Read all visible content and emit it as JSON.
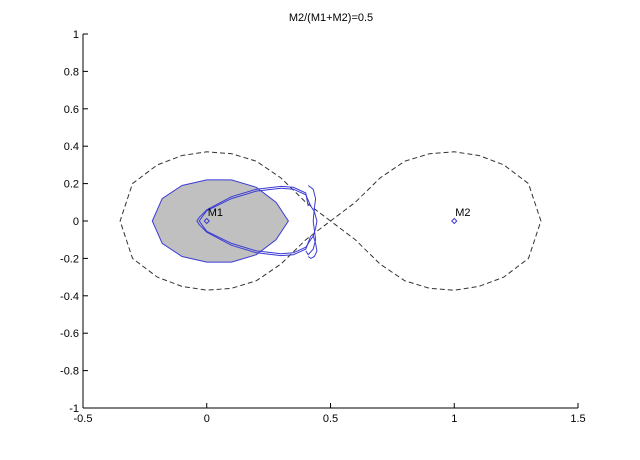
{
  "chart_data": {
    "type": "line",
    "title": "M2/(M1+M2)=0.5",
    "xlabel": "",
    "ylabel": "",
    "xlim": [
      -0.5,
      1.5
    ],
    "ylim": [
      -1,
      1
    ],
    "grid": false,
    "x_ticks": [
      -0.5,
      0,
      0.5,
      1,
      1.5
    ],
    "x_tick_labels": [
      "-0.5",
      "0",
      "0.5",
      "1",
      "1.5"
    ],
    "y_ticks": [
      -1,
      -0.8,
      -0.6,
      -0.4,
      -0.2,
      0,
      0.2,
      0.4,
      0.6,
      0.8,
      1
    ],
    "y_tick_labels": [
      "-1",
      "-0.8",
      "-0.6",
      "-0.4",
      "-0.2",
      "0",
      "0.2",
      "0.4",
      "0.6",
      "0.8",
      "1"
    ],
    "colors": {
      "axes": "#000000",
      "zero_velocity_curve": "#333333",
      "orbit": "#3b3bd6",
      "filled_region": "#c0c0c0",
      "mass_marker": "#3b3bd6"
    },
    "masses": [
      {
        "label": "M1",
        "x": 0,
        "y": 0
      },
      {
        "label": "M2",
        "x": 1,
        "y": 0
      }
    ],
    "filled_region": {
      "x": [
        -0.22,
        -0.18,
        -0.1,
        0,
        0.1,
        0.2,
        0.28,
        0.33,
        0.28,
        0.2,
        0.1,
        0,
        -0.1,
        -0.18,
        -0.22
      ],
      "y": [
        0,
        0.12,
        0.19,
        0.22,
        0.22,
        0.18,
        0.1,
        0,
        -0.1,
        -0.18,
        -0.22,
        -0.22,
        -0.19,
        -0.12,
        0
      ]
    },
    "series": [
      {
        "style": "dashed",
        "x": [
          0.5,
          0.4,
          0.3,
          0.2,
          0.1,
          0,
          -0.1,
          -0.2,
          -0.3,
          -0.35,
          -0.3,
          -0.2,
          -0.1,
          0,
          0.1,
          0.2,
          0.3,
          0.4,
          0.5,
          0.6,
          0.7,
          0.8,
          0.9,
          1,
          1.1,
          1.2,
          1.3,
          1.35,
          1.3,
          1.2,
          1.1,
          1,
          0.9,
          0.8,
          0.7,
          0.6,
          0.5
        ],
        "y": [
          0,
          0.1,
          0.23,
          0.32,
          0.36,
          0.37,
          0.35,
          0.3,
          0.2,
          0,
          -0.2,
          -0.3,
          -0.35,
          -0.37,
          -0.36,
          -0.32,
          -0.23,
          -0.1,
          0,
          0.1,
          0.23,
          0.32,
          0.36,
          0.37,
          0.35,
          0.3,
          0.2,
          0,
          -0.2,
          -0.3,
          -0.35,
          -0.37,
          -0.36,
          -0.32,
          -0.23,
          -0.1,
          0
        ]
      },
      {
        "style": "solid",
        "x": [
          0.41,
          0.4,
          0.35,
          0.3,
          0.2,
          0.1,
          0,
          -0.03,
          -0.04,
          -0.03,
          0,
          0.1,
          0.2,
          0.3,
          0.35,
          0.4,
          0.42
        ],
        "y": [
          0.08,
          0.15,
          0.18,
          0.185,
          0.17,
          0.13,
          0.06,
          0.02,
          0,
          -0.02,
          -0.06,
          -0.13,
          -0.17,
          -0.185,
          -0.18,
          -0.15,
          -0.08
        ]
      },
      {
        "style": "solid",
        "x": [
          0.42,
          0.4,
          0.35,
          0.3,
          0.2,
          0.1,
          0,
          -0.02,
          -0.03,
          -0.02,
          0,
          0.1,
          0.2,
          0.3,
          0.35,
          0.4,
          0.43
        ],
        "y": [
          0.08,
          0.14,
          0.17,
          0.175,
          0.16,
          0.12,
          0.055,
          0.02,
          0,
          -0.02,
          -0.055,
          -0.12,
          -0.16,
          -0.175,
          -0.17,
          -0.14,
          -0.08
        ]
      },
      {
        "style": "solid",
        "x": [
          0.42,
          0.435,
          0.445,
          0.44,
          0.43,
          0.44,
          0.445,
          0.435,
          0.42,
          0.41
        ],
        "y": [
          0.08,
          0.05,
          0.0,
          -0.04,
          -0.08,
          -0.12,
          -0.16,
          -0.19,
          -0.2,
          -0.19
        ]
      },
      {
        "style": "solid",
        "x": [
          0.41,
          0.43,
          0.44,
          0.435,
          0.43,
          0.435,
          0.44,
          0.43,
          0.41,
          0.4
        ],
        "y": [
          0.19,
          0.17,
          0.12,
          0.07,
          0.0,
          -0.05,
          -0.1,
          -0.15,
          -0.18,
          -0.16
        ]
      }
    ]
  }
}
